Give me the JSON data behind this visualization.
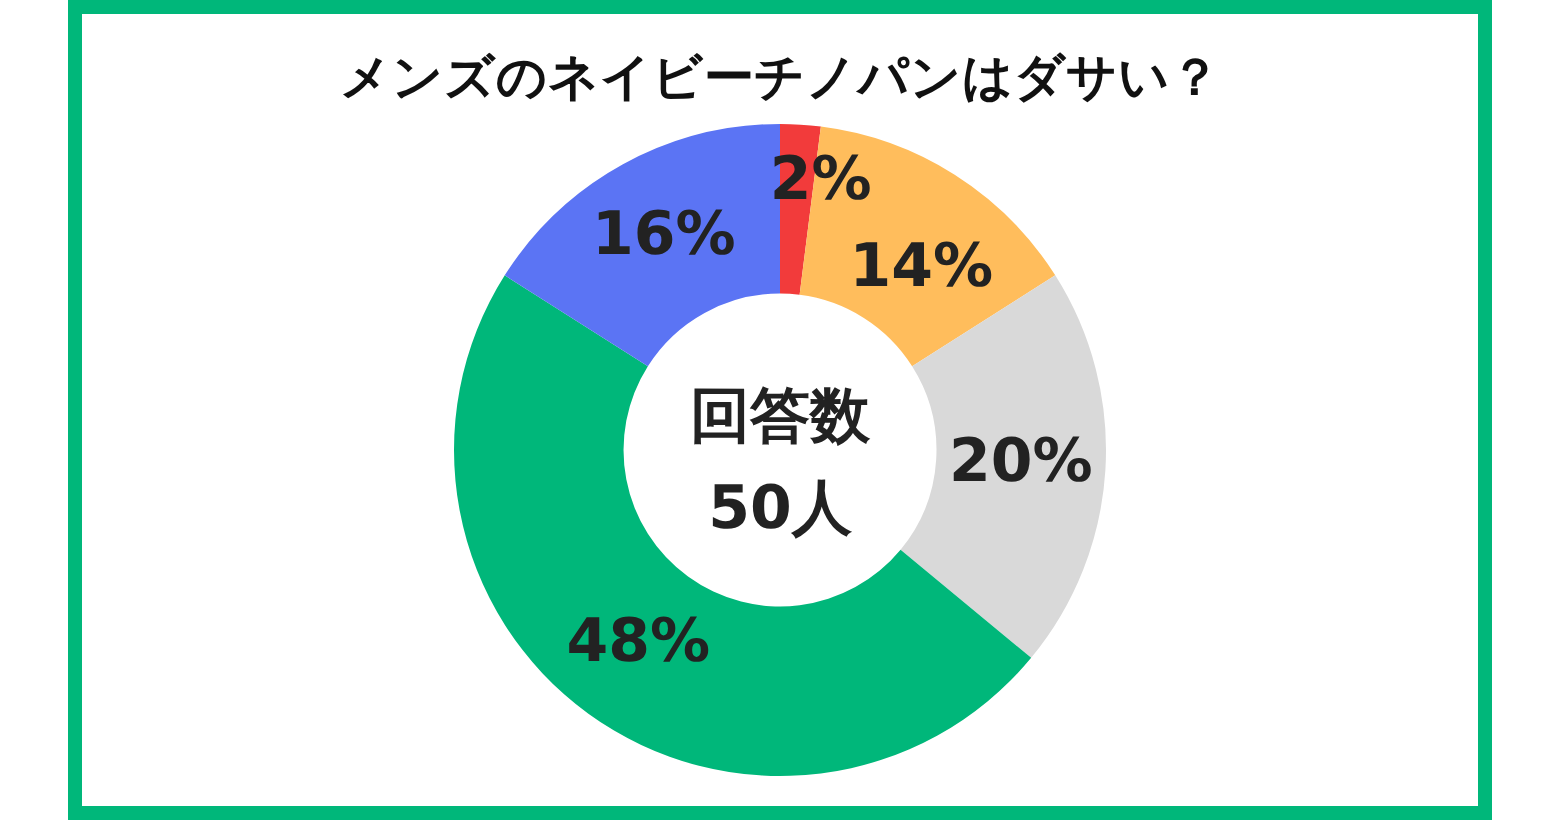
{
  "chart_data": {
    "type": "donut",
    "title": "メンズのネイビーチノパンはダサい？",
    "categories": [
      null,
      null,
      null,
      null,
      null
    ],
    "values": [
      2,
      14,
      20,
      48,
      16
    ],
    "colors": [
      "#f23b3b",
      "#ffbd5c",
      "#d9d9d9",
      "#00b77a",
      "#5b74f4"
    ],
    "value_labels": [
      "2%",
      "14%",
      "20%",
      "48%",
      "16%"
    ],
    "annotations": [
      "回答数",
      "50人"
    ],
    "legend": false
  }
}
